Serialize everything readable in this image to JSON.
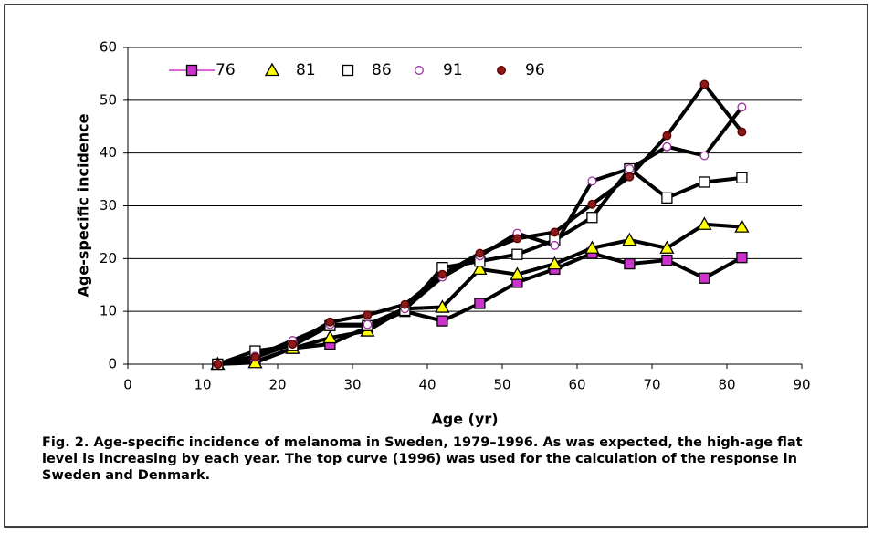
{
  "chart_data": {
    "type": "line",
    "y_label": "Age-specific incidence",
    "x_label": "Age (yr)",
    "caption": "Fig. 2. Age-specific incidence of melanoma in Sweden, 1979–1996. As was expected, the high-age flat level is increasing by each year. The top curve (1996) was used for the calculation of the response in Sweden and Denmark.",
    "x": [
      12,
      17,
      22,
      27,
      32,
      37,
      42,
      47,
      52,
      57,
      62,
      67,
      72,
      77,
      82
    ],
    "series": [
      {
        "name": "76",
        "marker": "square",
        "color": "#cc33cc",
        "edge": "#000000",
        "legend_line": "#cc33cc",
        "values": [
          0,
          0.5,
          3,
          3.8,
          7,
          10,
          8.2,
          11.5,
          15.5,
          18,
          21,
          19,
          19.7,
          16.3,
          20.2
        ]
      },
      {
        "name": "81",
        "marker": "triangle",
        "color": "#ffff00",
        "edge": "#000000",
        "values": [
          0,
          0.3,
          3,
          5,
          6.3,
          10.5,
          10.8,
          18,
          17,
          19,
          22,
          23.5,
          22,
          26.5,
          26
        ]
      },
      {
        "name": "86",
        "marker": "square",
        "color": "#ffffff",
        "edge": "#000000",
        "values": [
          0,
          2.5,
          3.5,
          7.3,
          7.3,
          10.2,
          18.3,
          19.5,
          20.8,
          23.5,
          27.8,
          37,
          31.5,
          34.5,
          35.3
        ]
      },
      {
        "name": "91",
        "marker": "circle",
        "color": "#ffffff",
        "edge": "#993399",
        "values": [
          0,
          1.5,
          4.5,
          7.5,
          7.5,
          10.5,
          16.5,
          20.5,
          24.8,
          22.5,
          34.7,
          37,
          41.2,
          39.5,
          48.7
        ]
      },
      {
        "name": "96",
        "marker": "circle",
        "color": "#8b1a1a",
        "edge": "#5a0000",
        "values": [
          0,
          1.3,
          3.8,
          8,
          9.3,
          11.3,
          17,
          21,
          23.8,
          25,
          30.3,
          35.5,
          43.3,
          53,
          44
        ]
      }
    ],
    "line_color": "#000000",
    "xlim": [
      0,
      90
    ],
    "xticks": [
      0,
      10,
      20,
      30,
      40,
      50,
      60,
      70,
      80,
      90
    ],
    "ylim": [
      0,
      60
    ],
    "yticks": [
      0,
      10,
      20,
      30,
      40,
      50,
      60
    ],
    "grid": true
  }
}
